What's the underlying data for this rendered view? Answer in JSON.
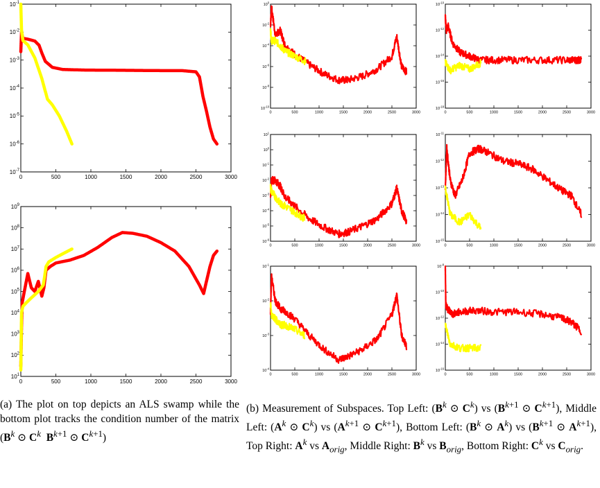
{
  "colors": {
    "series_a": "#ff0000",
    "series_b": "#ffff00"
  },
  "chart_data": [
    {
      "id": "a_top",
      "type": "line",
      "yscale": "log",
      "xlim": [
        0,
        3000
      ],
      "ylim": [
        1e-07,
        0.1
      ],
      "xticks": [
        "0",
        "500",
        "1000",
        "1500",
        "2000",
        "2500",
        "3000"
      ],
      "yticks": [
        "10^{-7}",
        "10^{-6}",
        "10^{-5}",
        "10^{-4}",
        "10^{-3}",
        "10^{-2}",
        "10^{-1}"
      ],
      "series": [
        {
          "color": "series_a",
          "x": [
            0,
            10,
            30,
            100,
            200,
            260,
            300,
            350,
            450,
            600,
            900,
            1500,
            2000,
            2300,
            2500,
            2550,
            2600,
            2650,
            2700,
            2750,
            2800
          ],
          "y": [
            0.002,
            0.01,
            0.006,
            0.0056,
            0.0048,
            0.0034,
            0.0018,
            0.0009,
            0.00055,
            0.00046,
            0.00044,
            0.00043,
            0.00042,
            0.00042,
            0.00038,
            0.00025,
            5e-05,
            1.5e-05,
            4e-06,
            1.5e-06,
            1e-06
          ]
        },
        {
          "color": "series_b",
          "x": [
            0,
            10,
            30,
            100,
            200,
            300,
            380,
            450,
            550,
            650,
            730
          ],
          "y": [
            0.1,
            0.012,
            0.005,
            0.0035,
            0.0012,
            0.00022,
            4e-05,
            2.5e-05,
            1e-05,
            3e-06,
            1e-06
          ]
        }
      ]
    },
    {
      "id": "a_bottom",
      "type": "line",
      "yscale": "log",
      "xlim": [
        0,
        3000
      ],
      "ylim": [
        10,
        1000000000.0
      ],
      "xticks": [
        "0",
        "500",
        "1000",
        "1500",
        "2000",
        "2500",
        "3000"
      ],
      "yticks": [
        "10^{1}",
        "10^{2}",
        "10^{3}",
        "10^{4}",
        "10^{5}",
        "10^{6}",
        "10^{7}",
        "10^{8}",
        "10^{9}"
      ],
      "series": [
        {
          "color": "series_a",
          "x": [
            0,
            10,
            20,
            50,
            100,
            150,
            200,
            250,
            300,
            330,
            360,
            420,
            500,
            700,
            900,
            1100,
            1300,
            1450,
            1600,
            1800,
            2000,
            2200,
            2400,
            2550,
            2610,
            2650,
            2700,
            2750,
            2800
          ],
          "y": [
            30,
            2000,
            30000,
            100000,
            700000,
            150000,
            100000,
            300000,
            60000,
            150000,
            1000000,
            1500000,
            2200000,
            3000000,
            5000000,
            12000000,
            35000000,
            60000000,
            55000000,
            40000000,
            20000000,
            8000000,
            1500000,
            200000,
            80000,
            300000,
            1500000,
            5000000,
            8000000
          ]
        },
        {
          "color": "series_b",
          "x": [
            0,
            10,
            30,
            80,
            150,
            250,
            320,
            340,
            360,
            400,
            500,
            600,
            730
          ],
          "y": [
            20,
            10000,
            20000,
            30000,
            50000,
            100000,
            200000,
            500000,
            1500000,
            2500000,
            4000000,
            6000000,
            10000000
          ]
        }
      ]
    },
    {
      "id": "b_0",
      "type": "line",
      "yscale": "log",
      "xlim": [
        0,
        3000
      ],
      "ylim": [
        1e-10,
        1.0
      ],
      "xticks": [
        "0",
        "500",
        "1000",
        "1500",
        "2000",
        "2500",
        "3000"
      ],
      "yticks": [
        "10^{-10}",
        "10^{-8}",
        "10^{-6}",
        "10^{-4}",
        "10^{-2}",
        "10^{0}"
      ],
      "series": [
        {
          "color": "series_a",
          "x": [
            0,
            20,
            100,
            200,
            300,
            500,
            800,
            1100,
            1400,
            1600,
            1900,
            2200,
            2500,
            2600,
            2700,
            2800
          ],
          "y": [
            0.01,
            0.5,
            0.001,
            0.003,
            0.0001,
            1.5e-05,
            1.5e-06,
            2e-07,
            5e-08,
            5e-08,
            1.2e-07,
            6e-07,
            1e-05,
            0.0008,
            1e-06,
            3e-07
          ]
        },
        {
          "color": "series_b",
          "x": [
            0,
            20,
            100,
            200,
            300,
            500,
            730
          ],
          "y": [
            0.003,
            0.0003,
            0.0003,
            0.0001,
            3e-05,
            1e-05,
            3e-06
          ]
        }
      ]
    },
    {
      "id": "b_1",
      "type": "line",
      "yscale": "log",
      "xlim": [
        0,
        3000
      ],
      "ylim": [
        1e-18,
        1e-10
      ],
      "xticks": [
        "0",
        "500",
        "1000",
        "1500",
        "2000",
        "2500",
        "3000"
      ],
      "yticks": [
        "10^{-18}",
        "10^{-16}",
        "10^{-14}",
        "10^{-12}",
        "10^{-10}"
      ],
      "series": [
        {
          "color": "series_a",
          "x": [
            0,
            20,
            60,
            150,
            300,
            500,
            700,
            1000,
            1500,
            2000,
            2500,
            2700,
            2800
          ],
          "y": [
            1e-11,
            1e-12,
            2e-12,
            1e-13,
            2e-14,
            1e-14,
            5e-15,
            5e-15,
            5e-15,
            5e-15,
            5e-15,
            5e-15,
            5e-15
          ]
        },
        {
          "color": "series_b",
          "x": [
            0,
            100,
            300,
            500,
            730
          ],
          "y": [
            3e-15,
            8e-16,
            2e-15,
            1e-15,
            3e-15
          ]
        }
      ]
    },
    {
      "id": "b_2",
      "type": "line",
      "yscale": "log",
      "xlim": [
        0,
        3000
      ],
      "ylim": [
        1e-06,
        10.0
      ],
      "xticks": [
        "0",
        "500",
        "1000",
        "1500",
        "2000",
        "2500",
        "3000"
      ],
      "yticks": [
        "10^{-6}",
        "10^{-5}",
        "10^{-4}",
        "10^{-3}",
        "10^{-2}",
        "10^{-1}",
        "10^{0}",
        "10^{1}"
      ],
      "series": [
        {
          "color": "series_a",
          "x": [
            0,
            20,
            100,
            200,
            300,
            500,
            800,
            1100,
            1400,
            1600,
            1900,
            2200,
            2500,
            2600,
            2700,
            2800
          ],
          "y": [
            0.001,
            0.01,
            0.01,
            0.004,
            0.0008,
            0.0002,
            3e-05,
            8e-06,
            3e-06,
            4e-06,
            1e-05,
            3e-05,
            0.0003,
            0.003,
            0.0001,
            2e-05
          ]
        },
        {
          "color": "series_b",
          "x": [
            0,
            20,
            100,
            200,
            300,
            500,
            700
          ],
          "y": [
            0.003,
            0.002,
            0.0008,
            0.0003,
            0.0002,
            8e-05,
            3e-05
          ]
        }
      ]
    },
    {
      "id": "b_3",
      "type": "line",
      "yscale": "log",
      "xlim": [
        0,
        3000
      ],
      "ylim": [
        1e-15,
        1e-11
      ],
      "xticks": [
        "0",
        "500",
        "1000",
        "1500",
        "2000",
        "2500",
        "3000"
      ],
      "yticks": [
        "10^{-15}",
        "10^{-14}",
        "10^{-13}",
        "10^{-12}",
        "10^{-11}"
      ],
      "series": [
        {
          "color": "series_a",
          "x": [
            0,
            30,
            100,
            200,
            350,
            500,
            700,
            900,
            1200,
            1500,
            1800,
            2100,
            2400,
            2600,
            2800
          ],
          "y": [
            1e-13,
            3e-12,
            2e-13,
            5e-14,
            2e-13,
            2e-12,
            3e-12,
            2e-12,
            1e-12,
            8e-13,
            5e-13,
            2e-13,
            8e-14,
            5e-14,
            1e-14
          ]
        },
        {
          "color": "series_b",
          "x": [
            0,
            100,
            300,
            500,
            730
          ],
          "y": [
            1e-13,
            1e-14,
            5e-15,
            1e-14,
            3e-15
          ]
        }
      ]
    },
    {
      "id": "b_4",
      "type": "line",
      "yscale": "log",
      "xlim": [
        0,
        3000
      ],
      "ylim": [
        0.0001,
        0.1
      ],
      "xticks": [
        "0",
        "500",
        "1000",
        "1500",
        "2000",
        "2500",
        "3000"
      ],
      "yticks": [
        "10^{-4}",
        "10^{-3}",
        "10^{-2}",
        "10^{-1}"
      ],
      "series": [
        {
          "color": "series_a",
          "x": [
            0,
            20,
            100,
            200,
            300,
            500,
            800,
            1100,
            1400,
            1600,
            1900,
            2200,
            2500,
            2600,
            2700,
            2800
          ],
          "y": [
            0.005,
            0.05,
            0.01,
            0.006,
            0.005,
            0.003,
            0.001,
            0.0004,
            0.0002,
            0.00025,
            0.0004,
            0.0008,
            0.004,
            0.015,
            0.001,
            0.0005
          ]
        },
        {
          "color": "series_b",
          "x": [
            0,
            20,
            100,
            200,
            300,
            500,
            700
          ],
          "y": [
            0.008,
            0.004,
            0.003,
            0.002,
            0.002,
            0.0015,
            0.001
          ]
        }
      ]
    },
    {
      "id": "b_5",
      "type": "line",
      "yscale": "log",
      "xlim": [
        0,
        3000
      ],
      "ylim": [
        1e-16,
        1e-08
      ],
      "xticks": [
        "0",
        "500",
        "1000",
        "1500",
        "2000",
        "2500",
        "3000"
      ],
      "yticks": [
        "10^{-16}",
        "10^{-14}",
        "10^{-12}",
        "10^{-10}",
        "10^{-8}"
      ],
      "series": [
        {
          "color": "series_a",
          "x": [
            0,
            10,
            50,
            150,
            300,
            600,
            1000,
            1500,
            2000,
            2400,
            2600,
            2800
          ],
          "y": [
            1e-08,
            1e-11,
            5e-12,
            2e-12,
            3e-12,
            4e-12,
            3e-12,
            3e-12,
            2e-12,
            1e-12,
            5e-13,
            1e-13
          ]
        },
        {
          "color": "series_b",
          "x": [
            0,
            100,
            300,
            500,
            730
          ],
          "y": [
            3e-13,
            1e-14,
            5e-15,
            5e-15,
            5e-15
          ]
        }
      ]
    }
  ]
}
